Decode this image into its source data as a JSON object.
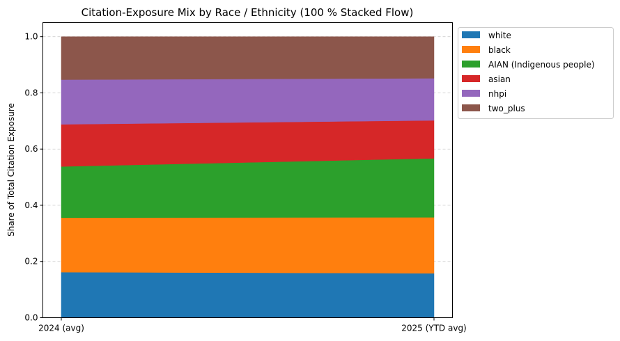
{
  "chart_data": {
    "type": "area",
    "title": "Citation-Exposure Mix by Race / Ethnicity (100 % Stacked Flow)",
    "xlabel": "",
    "ylabel": "Share of Total Citation Exposure",
    "categories": [
      "2024 (avg)",
      "2025 (YTD avg)"
    ],
    "ylim": [
      0,
      1.05
    ],
    "yticks": [
      "0.0",
      "0.2",
      "0.4",
      "0.6",
      "0.8",
      "1.0"
    ],
    "grid": true,
    "legend_position": "outside-top-right",
    "series": [
      {
        "name": "white",
        "color": "#1f77b4",
        "values": [
          0.162,
          0.158
        ]
      },
      {
        "name": "black",
        "color": "#ff7f0e",
        "values": [
          0.194,
          0.199
        ]
      },
      {
        "name": "AIAN (Indigenous people)",
        "color": "#2ca02c",
        "values": [
          0.182,
          0.21
        ]
      },
      {
        "name": "asian",
        "color": "#d62728",
        "values": [
          0.15,
          0.135
        ]
      },
      {
        "name": "nhpi",
        "color": "#9467bd",
        "values": [
          0.159,
          0.15
        ]
      },
      {
        "name": "two_plus",
        "color": "#8c564b",
        "values": [
          0.153,
          0.148
        ]
      }
    ]
  }
}
